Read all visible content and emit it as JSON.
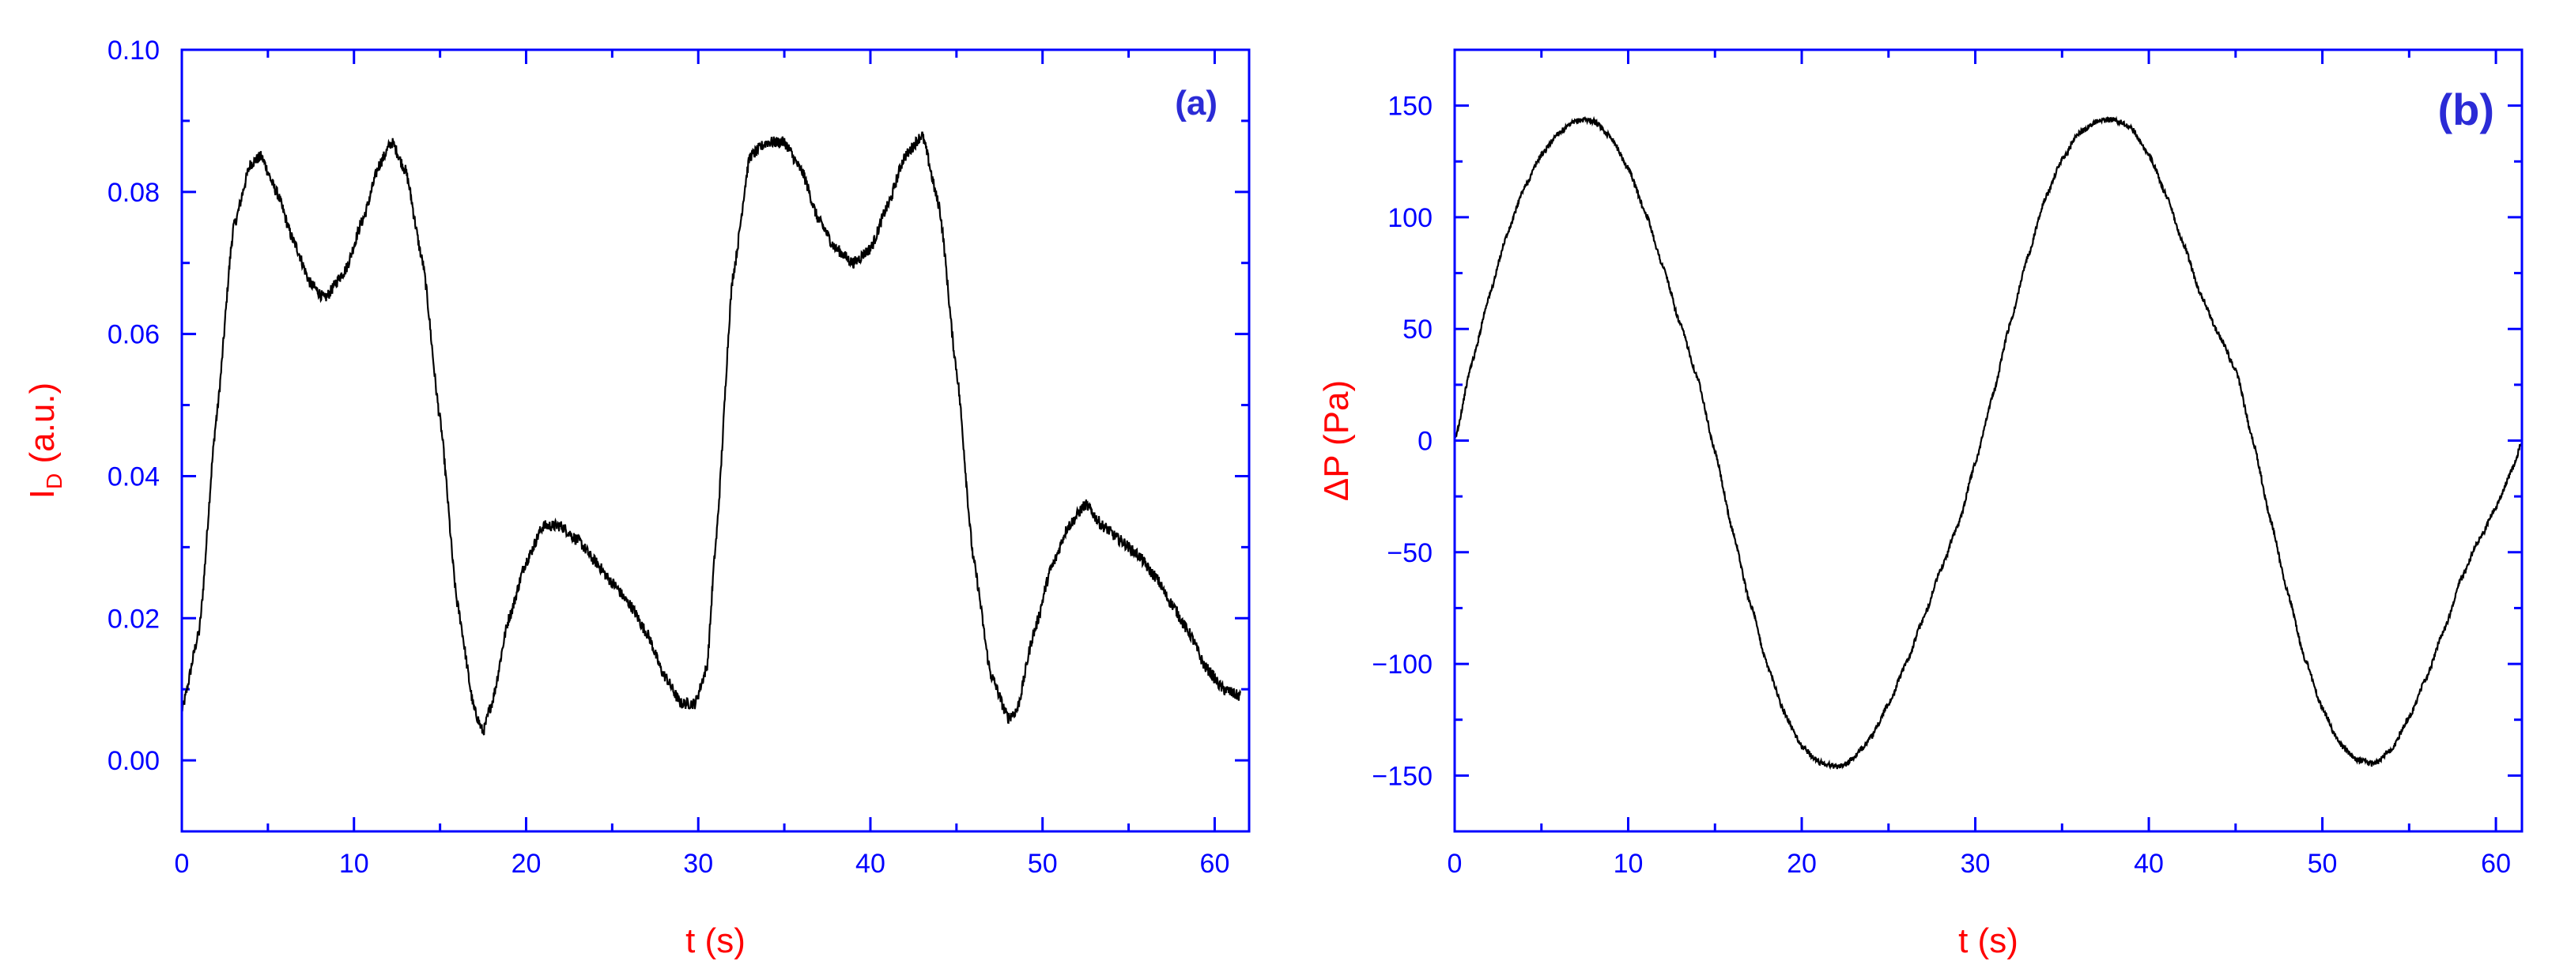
{
  "chart_data": [
    {
      "type": "line",
      "panel_label": "(a)",
      "xlabel": "t (s)",
      "ylabel_main": "I",
      "ylabel_sub": "D",
      "ylabel_rest": " (a.u.)",
      "xlim": [
        0,
        62
      ],
      "ylim": [
        -0.01,
        0.1
      ],
      "xticks": [
        0,
        10,
        20,
        30,
        40,
        50,
        60
      ],
      "xtick_labels": [
        "0",
        "10",
        "20",
        "30",
        "40",
        "50",
        "60"
      ],
      "yticks": [
        0.0,
        0.02,
        0.04,
        0.06,
        0.08,
        0.1
      ],
      "ytick_labels": [
        "0.00",
        "0.02",
        "0.04",
        "0.06",
        "0.08",
        "0.10"
      ],
      "x_minor_step": 5,
      "y_minor_step": 0.01,
      "line_color": "#000000",
      "axis_color": "#0000ff",
      "noise_amplitude": 0.0008,
      "series": [
        {
          "x": [
            0,
            1,
            2,
            3,
            4,
            4.6,
            5.5,
            6.5,
            7.5,
            8.3,
            9.5,
            10.5,
            11.5,
            12.2,
            13,
            14,
            15,
            16,
            17,
            17.5,
            18,
            19,
            20,
            21,
            22,
            23,
            24,
            25,
            26,
            27,
            28,
            29,
            29.8,
            30.5,
            31,
            32,
            33,
            34,
            35,
            36,
            37,
            38,
            39,
            40,
            41,
            42,
            43,
            44,
            45,
            46,
            47,
            48,
            48.5,
            49.5,
            50.5,
            51.5,
            52.5,
            53.5,
            54.5,
            55.5,
            56.5,
            57.5,
            58.5,
            59.5,
            60.5,
            61.5
          ],
          "y": [
            0.007,
            0.018,
            0.048,
            0.075,
            0.084,
            0.085,
            0.08,
            0.073,
            0.067,
            0.065,
            0.069,
            0.076,
            0.084,
            0.087,
            0.083,
            0.07,
            0.048,
            0.022,
            0.007,
            0.004,
            0.008,
            0.02,
            0.028,
            0.033,
            0.033,
            0.031,
            0.028,
            0.025,
            0.022,
            0.018,
            0.012,
            0.008,
            0.008,
            0.013,
            0.03,
            0.068,
            0.085,
            0.087,
            0.087,
            0.083,
            0.076,
            0.072,
            0.07,
            0.072,
            0.078,
            0.085,
            0.088,
            0.078,
            0.055,
            0.028,
            0.012,
            0.006,
            0.007,
            0.018,
            0.027,
            0.033,
            0.036,
            0.033,
            0.031,
            0.029,
            0.026,
            0.022,
            0.018,
            0.013,
            0.01,
            0.009
          ]
        }
      ]
    },
    {
      "type": "line",
      "panel_label": "(b)",
      "xlabel": "t (s)",
      "ylabel": "ΔP (Pa)",
      "xlim": [
        0,
        61.5
      ],
      "ylim": [
        -175,
        175
      ],
      "xticks": [
        0,
        10,
        20,
        30,
        40,
        50,
        60
      ],
      "xtick_labels": [
        "0",
        "10",
        "20",
        "30",
        "40",
        "50",
        "60"
      ],
      "yticks": [
        -150,
        -100,
        -50,
        0,
        50,
        100,
        150
      ],
      "ytick_labels": [
        "−150",
        "−100",
        "−50",
        "0",
        "50",
        "100",
        "150"
      ],
      "x_minor_step": 5,
      "y_minor_step": 25,
      "line_color": "#000000",
      "axis_color": "#0000ff",
      "noise_amplitude": 1.2,
      "series": [
        {
          "x": [
            0,
            1,
            2,
            3,
            4,
            5,
            6,
            7,
            7.5,
            8,
            9,
            10,
            11,
            12,
            13,
            14,
            15,
            16,
            17,
            18,
            19,
            20,
            21,
            22,
            22.5,
            23,
            24,
            25,
            26,
            27,
            28,
            29,
            30,
            31,
            32,
            33,
            34,
            35,
            36,
            37,
            38,
            39,
            40,
            41,
            42,
            43,
            44,
            45,
            46,
            47,
            48,
            49,
            50,
            51,
            52,
            53,
            54,
            55,
            56,
            57,
            58,
            59,
            60,
            61,
            61.5
          ],
          "y": [
            0,
            35,
            65,
            92,
            113,
            128,
            138,
            143,
            144,
            143,
            136,
            122,
            102,
            78,
            52,
            28,
            -5,
            -40,
            -72,
            -100,
            -122,
            -137,
            -144,
            -146,
            -145,
            -142,
            -133,
            -118,
            -100,
            -80,
            -58,
            -38,
            -10,
            20,
            52,
            82,
            108,
            126,
            138,
            143,
            144,
            140,
            128,
            110,
            88,
            65,
            48,
            32,
            0,
            -35,
            -68,
            -98,
            -120,
            -136,
            -143,
            -145,
            -138,
            -124,
            -106,
            -85,
            -62,
            -45,
            -30,
            -12,
            0
          ]
        }
      ]
    }
  ]
}
